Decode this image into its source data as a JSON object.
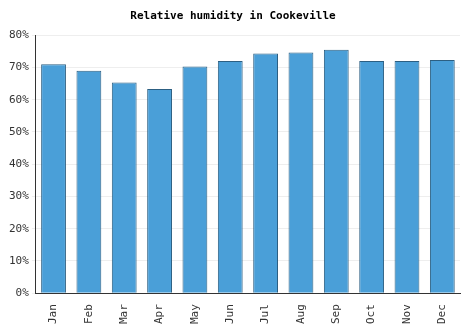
{
  "chart_data": {
    "type": "bar",
    "title": "Relative humidity in Cookeville",
    "categories": [
      "Jan",
      "Feb",
      "Mar",
      "Apr",
      "May",
      "Jun",
      "Jul",
      "Aug",
      "Sep",
      "Oct",
      "Nov",
      "Dec"
    ],
    "values": [
      71,
      69,
      65.3,
      63.3,
      70.3,
      72,
      74.3,
      74.6,
      75.5,
      72,
      72,
      72.3
    ],
    "color": "#4a9fd8",
    "ylim": [
      0,
      80
    ],
    "yticks": [
      {
        "value": 0,
        "label": "0%"
      },
      {
        "value": 10,
        "label": "10%"
      },
      {
        "value": 20,
        "label": "20%"
      },
      {
        "value": 30,
        "label": "30%"
      },
      {
        "value": 40,
        "label": "40%"
      },
      {
        "value": 50,
        "label": "50%"
      },
      {
        "value": 60,
        "label": "60%"
      },
      {
        "value": 70,
        "label": "70%"
      },
      {
        "value": 80,
        "label": "80%"
      }
    ],
    "grid": true
  }
}
